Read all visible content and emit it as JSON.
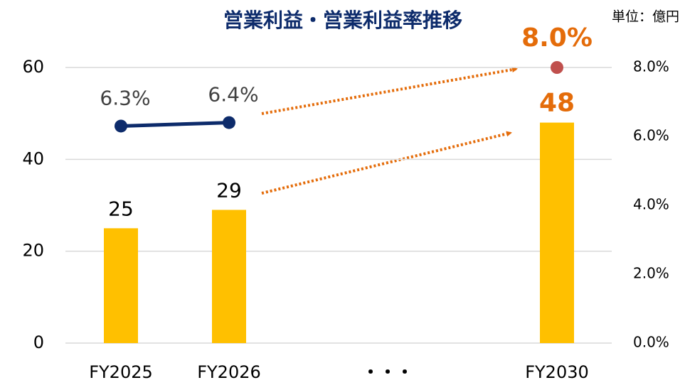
{
  "chart_data": {
    "type": "bar",
    "title": "営業利益・営業利益率推移",
    "unit_label": "単位：億円",
    "categories": [
      "FY2025",
      "FY2026",
      "・・・",
      "FY2030"
    ],
    "series": [
      {
        "name": "営業利益",
        "type": "bar",
        "color": "#FFC000",
        "values": [
          25,
          29,
          null,
          48
        ]
      },
      {
        "name": "営業利益率",
        "type": "line",
        "axis": "y2",
        "color": "#0D2B6B",
        "point_colors": [
          "#0D2B6B",
          "#0D2B6B",
          null,
          "#C0504D"
        ],
        "values": [
          6.3,
          6.4,
          null,
          8.0
        ],
        "value_labels": [
          "6.3%",
          "6.4%",
          null,
          "8.0%"
        ]
      }
    ],
    "highlight_color": "#E46C0A",
    "ylim": [
      0,
      60
    ],
    "yticks": [
      0,
      20,
      40,
      60
    ],
    "y2lim": [
      0,
      8
    ],
    "y2ticks": [
      {
        "value": 0,
        "label": "0.0%"
      },
      {
        "value": 2,
        "label": "2.0%"
      },
      {
        "value": 4,
        "label": "4.0%"
      },
      {
        "value": 6,
        "label": "6.0%"
      },
      {
        "value": 8,
        "label": "8.0%"
      }
    ],
    "grid": true
  }
}
